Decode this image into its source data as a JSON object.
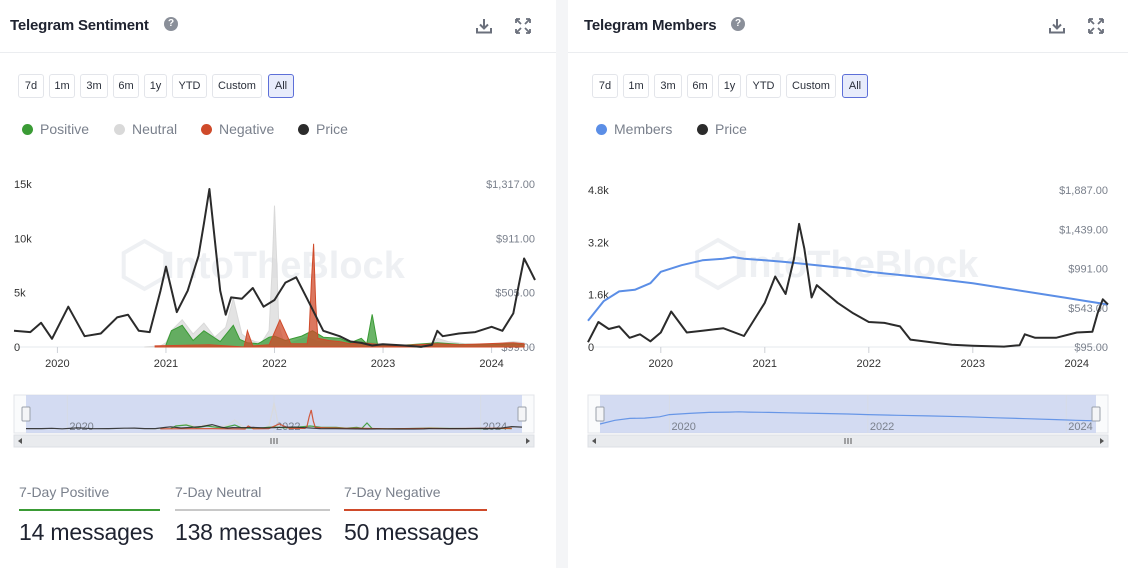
{
  "left": {
    "title": "Telegram Sentiment",
    "help_icon": "question-circle-icon",
    "download_icon": "download-icon",
    "expand_icon": "expand-icon",
    "ranges": [
      "7d",
      "1m",
      "3m",
      "6m",
      "1y",
      "YTD",
      "Custom",
      "All"
    ],
    "active_range": "All",
    "legend": [
      {
        "label": "Positive",
        "color": "#3a9b35"
      },
      {
        "label": "Neutral",
        "color": "#d9d9d9"
      },
      {
        "label": "Negative",
        "color": "#cf4a2a"
      },
      {
        "label": "Price",
        "color": "#2b2b2b"
      }
    ],
    "stats": [
      {
        "label": "7-Day Positive",
        "value": "14 messages",
        "color": "#3a9b35"
      },
      {
        "label": "7-Day Neutral",
        "value": "138 messages",
        "color": "#c8c8c8"
      },
      {
        "label": "7-Day Negative",
        "value": "50 messages",
        "color": "#cf4a2a"
      }
    ]
  },
  "right": {
    "title": "Telegram Members",
    "help_icon": "question-circle-icon",
    "download_icon": "download-icon",
    "expand_icon": "expand-icon",
    "ranges": [
      "7d",
      "1m",
      "3m",
      "6m",
      "1y",
      "YTD",
      "Custom",
      "All"
    ],
    "active_range": "All",
    "legend": [
      {
        "label": "Members",
        "color": "#5b8ee6"
      },
      {
        "label": "Price",
        "color": "#2b2b2b"
      }
    ]
  },
  "watermark": "IntoTheBlock",
  "chart_data": [
    {
      "type": "area",
      "title": "Telegram Sentiment",
      "x_ticks": [
        "2020",
        "2021",
        "2022",
        "2023",
        "2024"
      ],
      "x_tick_years": [
        2020,
        2021,
        2022,
        2023,
        2024
      ],
      "x_range": [
        2019.6,
        2024.4
      ],
      "y_left_ticks": [
        "0",
        "5k",
        "10k",
        "15k"
      ],
      "y_left_tick_values": [
        0,
        5000,
        10000,
        15000
      ],
      "y_left_range": [
        0,
        15000
      ],
      "y_right_ticks": [
        "$99.00",
        "$505.00",
        "$911.00",
        "$1,317.00"
      ],
      "y_right_tick_values": [
        99,
        505,
        911,
        1317
      ],
      "y_right_range": [
        99,
        1317
      ],
      "navigator_ticks": [
        "2020",
        "2022",
        "2024"
      ],
      "navigator_tick_years": [
        2020,
        2022,
        2024
      ],
      "series": [
        {
          "name": "Neutral",
          "axis": "left",
          "color": "#d9d9d9",
          "x": [
            2020.8,
            2020.95,
            2021.0,
            2021.05,
            2021.15,
            2021.25,
            2021.35,
            2021.45,
            2021.55,
            2021.62,
            2021.66,
            2021.7,
            2021.75,
            2021.82,
            2021.88,
            2021.95,
            2021.98,
            2022.0,
            2022.02,
            2022.04,
            2022.08,
            2022.15,
            2022.3,
            2022.4,
            2022.55,
            2022.7,
            2022.8,
            2022.95,
            2023.1,
            2023.3,
            2023.45,
            2023.5,
            2023.6,
            2023.75,
            2023.9,
            2024.05,
            2024.2,
            2024.3
          ],
          "y": [
            0,
            100,
            400,
            1500,
            2500,
            1200,
            2200,
            900,
            1800,
            4500,
            2800,
            1200,
            800,
            500,
            400,
            1500,
            7500,
            13000,
            8000,
            2000,
            600,
            400,
            900,
            500,
            700,
            400,
            500,
            350,
            100,
            80,
            60,
            800,
            500,
            300,
            250,
            300,
            500,
            400
          ]
        },
        {
          "name": "Positive",
          "axis": "left",
          "color": "#3a9b35",
          "x": [
            2021.0,
            2021.05,
            2021.15,
            2021.25,
            2021.35,
            2021.5,
            2021.62,
            2021.68,
            2021.75,
            2021.85,
            2021.95,
            2022.0,
            2022.1,
            2022.25,
            2022.35,
            2022.45,
            2022.6,
            2022.7,
            2022.8,
            2022.85,
            2022.9,
            2022.95,
            2023.1,
            2023.5,
            2023.7,
            2024.0,
            2024.2,
            2024.3
          ],
          "y": [
            200,
            1500,
            2000,
            600,
            1500,
            500,
            2000,
            700,
            400,
            300,
            900,
            1000,
            600,
            1000,
            1500,
            900,
            800,
            400,
            800,
            300,
            3000,
            200,
            100,
            400,
            250,
            200,
            300,
            200
          ]
        },
        {
          "name": "Negative",
          "axis": "left",
          "color": "#cf4a2a",
          "x": [
            2020.9,
            2021.4,
            2021.72,
            2021.75,
            2021.8,
            2021.95,
            2022.05,
            2022.15,
            2022.3,
            2022.32,
            2022.34,
            2022.36,
            2022.38,
            2022.4,
            2022.5,
            2022.6,
            2022.7,
            2022.8,
            2023.1,
            2023.5,
            2023.7,
            2024.2,
            2024.3
          ],
          "y": [
            100,
            200,
            0,
            1500,
            100,
            200,
            2500,
            300,
            300,
            1500,
            6000,
            9500,
            4000,
            800,
            600,
            500,
            300,
            400,
            100,
            300,
            200,
            400,
            300
          ]
        },
        {
          "name": "Price",
          "axis": "right",
          "color": "#2b2b2b",
          "x": [
            2019.6,
            2019.75,
            2019.85,
            2019.95,
            2020.1,
            2020.25,
            2020.4,
            2020.55,
            2020.65,
            2020.75,
            2020.85,
            2020.95,
            2021.0,
            2021.1,
            2021.2,
            2021.3,
            2021.35,
            2021.4,
            2021.5,
            2021.55,
            2021.6,
            2021.7,
            2021.8,
            2021.9,
            2022.0,
            2022.1,
            2022.2,
            2022.3,
            2022.45,
            2022.6,
            2022.7,
            2022.8,
            2022.9,
            2023.0,
            2023.2,
            2023.35,
            2023.45,
            2023.5,
            2023.55,
            2023.7,
            2023.85,
            2024.0,
            2024.1,
            2024.2,
            2024.25,
            2024.3,
            2024.35,
            2024.4
          ],
          "y": [
            220,
            210,
            280,
            160,
            400,
            180,
            200,
            320,
            340,
            220,
            210,
            520,
            700,
            360,
            520,
            780,
            1020,
            1280,
            520,
            340,
            470,
            460,
            540,
            400,
            450,
            580,
            620,
            460,
            220,
            180,
            140,
            130,
            110,
            120,
            110,
            100,
            115,
            220,
            180,
            200,
            210,
            250,
            220,
            350,
            560,
            760,
            680,
            600
          ]
        }
      ]
    },
    {
      "type": "line",
      "title": "Telegram Members",
      "x_ticks": [
        "2020",
        "2021",
        "2022",
        "2023",
        "2024"
      ],
      "x_tick_years": [
        2020,
        2021,
        2022,
        2023,
        2024
      ],
      "x_range": [
        2019.3,
        2024.3
      ],
      "y_left_ticks": [
        "0",
        "1.6k",
        "3.2k",
        "4.8k"
      ],
      "y_left_tick_values": [
        0,
        1600,
        3200,
        4800
      ],
      "y_left_range": [
        0,
        4800
      ],
      "y_right_ticks": [
        "$95.00",
        "$543.00",
        "$991.00",
        "$1,439.00",
        "$1,887.00"
      ],
      "y_right_tick_values": [
        95,
        543,
        991,
        1439,
        1887
      ],
      "y_right_range": [
        95,
        1887
      ],
      "navigator_ticks": [
        "2020",
        "2022",
        "2024"
      ],
      "navigator_tick_years": [
        2020,
        2022,
        2024
      ],
      "series": [
        {
          "name": "Members",
          "axis": "left",
          "color": "#5b8ee6",
          "x": [
            2019.3,
            2019.45,
            2019.6,
            2019.75,
            2019.9,
            2020.0,
            2020.2,
            2020.4,
            2020.6,
            2020.7,
            2020.8,
            2021.0,
            2021.2,
            2021.5,
            2021.8,
            2022.0,
            2022.3,
            2022.6,
            2023.0,
            2023.3,
            2023.6,
            2023.9,
            2024.1,
            2024.3
          ],
          "y": [
            800,
            1400,
            1700,
            1750,
            1950,
            2300,
            2500,
            2650,
            2700,
            2750,
            2700,
            2650,
            2600,
            2500,
            2400,
            2300,
            2200,
            2100,
            1950,
            1800,
            1650,
            1500,
            1400,
            1300
          ]
        },
        {
          "name": "Price",
          "axis": "right",
          "color": "#2b2b2b",
          "x": [
            2019.3,
            2019.4,
            2019.5,
            2019.6,
            2019.7,
            2019.8,
            2019.9,
            2020.0,
            2020.1,
            2020.15,
            2020.25,
            2020.4,
            2020.6,
            2020.8,
            2020.9,
            2021.0,
            2021.1,
            2021.2,
            2021.28,
            2021.33,
            2021.38,
            2021.45,
            2021.5,
            2021.6,
            2021.7,
            2021.85,
            2022.0,
            2022.15,
            2022.3,
            2022.4,
            2022.6,
            2022.8,
            2023.0,
            2023.3,
            2023.45,
            2023.5,
            2023.6,
            2023.8,
            2024.0,
            2024.15,
            2024.2,
            2024.25,
            2024.3
          ],
          "y": [
            150,
            380,
            300,
            330,
            200,
            240,
            160,
            260,
            500,
            420,
            260,
            280,
            310,
            220,
            410,
            600,
            900,
            700,
            1100,
            1500,
            1220,
            660,
            800,
            700,
            600,
            480,
            380,
            370,
            330,
            180,
            150,
            120,
            110,
            100,
            115,
            240,
            200,
            200,
            260,
            270,
            480,
            640,
            580
          ]
        }
      ]
    }
  ]
}
